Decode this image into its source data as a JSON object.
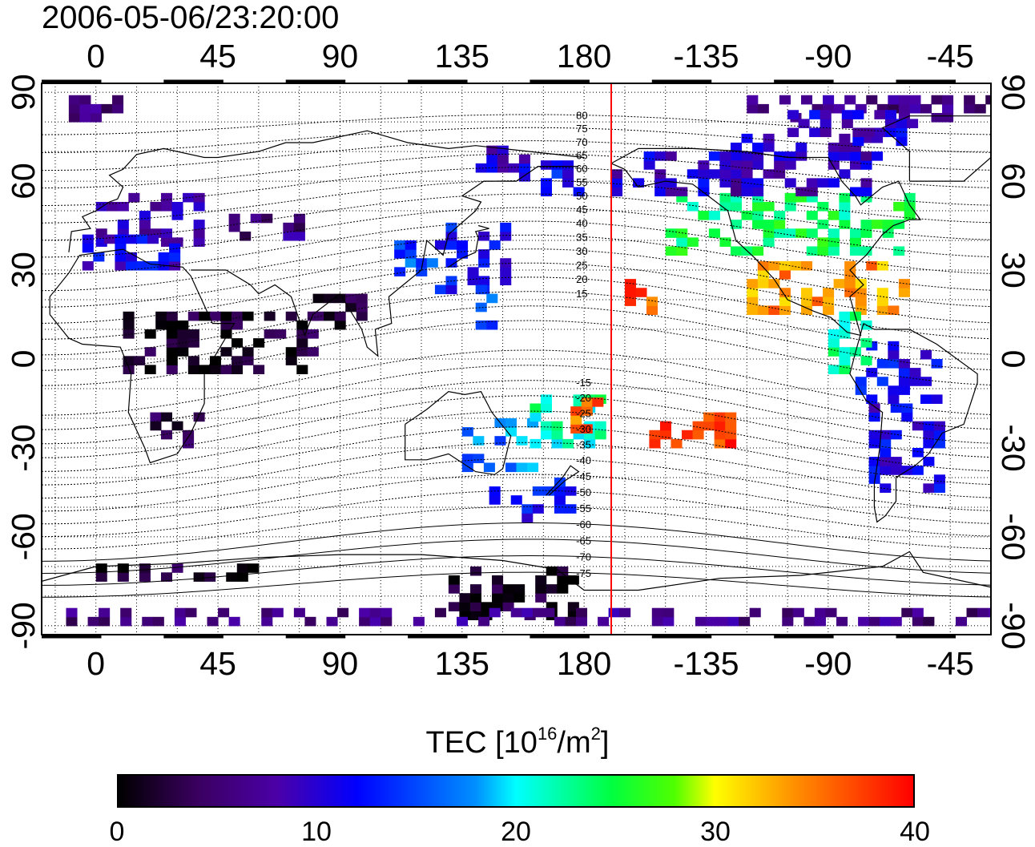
{
  "title": "2006-05-06/23:20:00",
  "map": {
    "x_ticks": [
      "0",
      "45",
      "90",
      "135",
      "180",
      "-135",
      "-90",
      "-45"
    ],
    "x_tick_lons": [
      0,
      45,
      90,
      135,
      180,
      225,
      270,
      315
    ],
    "y_ticks": [
      "90",
      "60",
      "30",
      "0",
      "-30",
      "-60",
      "-90"
    ],
    "y_tick_lats": [
      90,
      60,
      30,
      0,
      -30,
      -60,
      -90
    ],
    "lon_range": [
      -20,
      330
    ],
    "lat_range": [
      -93,
      93
    ],
    "meridian_line_lon": 190,
    "meridian_line_color": "#ff0000",
    "contour_labels": [
      "80",
      "75",
      "70",
      "65",
      "60",
      "55",
      "50",
      "45",
      "40",
      "35",
      "30",
      "25",
      "20",
      "15",
      "-15",
      "-20",
      "-25",
      "-30",
      "-35",
      "-40",
      "-45",
      "-50",
      "-55",
      "-60",
      "-65",
      "-70",
      "-75"
    ]
  },
  "colorbar": {
    "title_main": "TEC  [10",
    "title_exp": "16",
    "title_unit": "/m",
    "title_exp2": "2",
    "title_end": "]",
    "labels": [
      "0",
      "10",
      "20",
      "30",
      "40"
    ],
    "range": [
      0,
      40
    ]
  },
  "colors": {
    "tec_low": "#000000",
    "tec_mid": "#00ffff",
    "tec_high": "#ff0000"
  }
}
